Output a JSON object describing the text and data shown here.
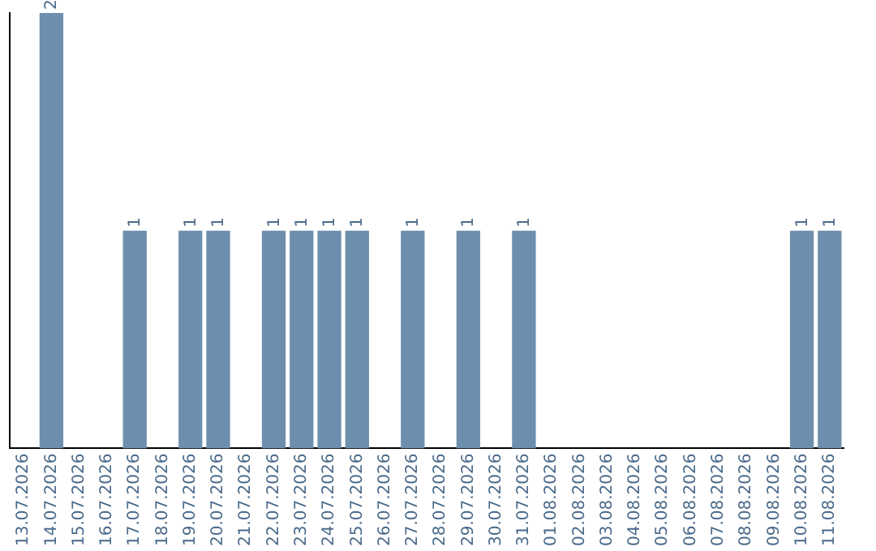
{
  "chart_data": {
    "type": "bar",
    "categories": [
      "13.07.2026",
      "14.07.2026",
      "15.07.2026",
      "16.07.2026",
      "17.07.2026",
      "18.07.2026",
      "19.07.2026",
      "20.07.2026",
      "21.07.2026",
      "22.07.2026",
      "23.07.2026",
      "24.07.2026",
      "25.07.2026",
      "26.07.2026",
      "27.07.2026",
      "28.07.2026",
      "29.07.2026",
      "30.07.2026",
      "31.07.2026",
      "01.08.2026",
      "02.08.2026",
      "03.08.2026",
      "04.08.2026",
      "05.08.2026",
      "06.08.2026",
      "07.08.2026",
      "08.08.2026",
      "09.08.2026",
      "10.08.2026",
      "11.08.2026"
    ],
    "values": [
      0,
      2,
      0,
      0,
      1,
      0,
      1,
      1,
      0,
      1,
      1,
      1,
      1,
      0,
      1,
      0,
      1,
      0,
      1,
      0,
      0,
      0,
      0,
      0,
      0,
      0,
      0,
      0,
      1,
      1
    ],
    "value_labels": [
      null,
      "2",
      null,
      null,
      "1",
      null,
      "1",
      "1",
      null,
      "1",
      "1",
      "1",
      "1",
      null,
      "1",
      null,
      "1",
      null,
      "1",
      null,
      null,
      null,
      null,
      null,
      null,
      null,
      null,
      null,
      "1",
      "1"
    ],
    "color": "#6d8fad",
    "grid": false,
    "legend": false,
    "tick_labels": "x"
  }
}
